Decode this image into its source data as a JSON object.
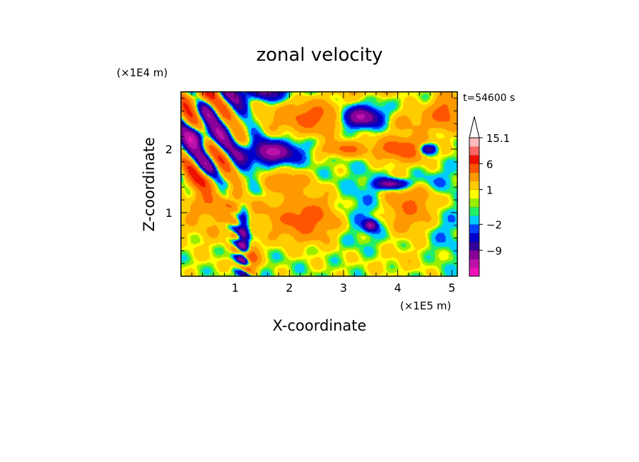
{
  "chart_data": {
    "type": "heatmap",
    "title": "zonal velocity",
    "xlabel": "X-coordinate",
    "ylabel": "Z-coordinate",
    "x_unit": "(×1E5 m)",
    "y_unit": "(×1E4 m)",
    "time_label": "t=54600 s",
    "xlim": [
      0,
      5.1
    ],
    "ylim": [
      0,
      2.9
    ],
    "x_ticks": [
      1,
      2,
      3,
      4,
      5
    ],
    "y_ticks": [
      1,
      2
    ],
    "colorbar": {
      "levels": [
        -15,
        -12,
        -9,
        -6,
        -4,
        -2,
        -1,
        0,
        0.5,
        1,
        1.5,
        3,
        6,
        9,
        12,
        15.1
      ],
      "colors": [
        "#ee11bb",
        "#bb11aa",
        "#880099",
        "#330099",
        "#0000cc",
        "#0044ff",
        "#00ccff",
        "#22ee66",
        "#99ee00",
        "#ffff00",
        "#ffcc00",
        "#ff9900",
        "#ff5500",
        "#ee1100",
        "#ff6666",
        "#ffbbbb"
      ],
      "tick_labels": [
        {
          "value": 15.1,
          "text": "15.1"
        },
        {
          "value": 6,
          "text": "6"
        },
        {
          "value": 1,
          "text": "1"
        },
        {
          "value": -2,
          "text": "−2"
        },
        {
          "value": -9,
          "text": "−9"
        }
      ],
      "extend": "max"
    },
    "features": [
      {
        "x": 2.5,
        "z": 2.5,
        "sx": 0.55,
        "sz": 0.18,
        "v": 7
      },
      {
        "x": 1.65,
        "z": 1.95,
        "sx": 0.35,
        "sz": 0.12,
        "v": -10
      },
      {
        "x": 3.3,
        "z": 2.5,
        "sx": 0.3,
        "sz": 0.12,
        "v": -12
      },
      {
        "x": 1.45,
        "z": 2.9,
        "sx": 0.35,
        "sz": 0.1,
        "v": -7
      },
      {
        "x": 3.5,
        "z": 2.95,
        "sx": 0.45,
        "sz": 0.08,
        "v": 3
      },
      {
        "x": 4.1,
        "z": 2.0,
        "sx": 0.35,
        "sz": 0.13,
        "v": 8
      },
      {
        "x": 3.0,
        "z": 2.0,
        "sx": 0.3,
        "sz": 0.08,
        "v": 6
      },
      {
        "x": 4.3,
        "z": 2.45,
        "sx": 0.45,
        "sz": 0.15,
        "v": 3
      },
      {
        "x": 4.9,
        "z": 2.6,
        "sx": 0.2,
        "sz": 0.2,
        "v": 6
      },
      {
        "x": 4.55,
        "z": 2.0,
        "sx": 0.12,
        "sz": 0.06,
        "v": -9
      },
      {
        "x": 3.9,
        "z": 1.45,
        "sx": 0.22,
        "sz": 0.06,
        "v": -9
      },
      {
        "x": 4.6,
        "z": 1.5,
        "sx": 0.35,
        "sz": 0.12,
        "v": -2
      },
      {
        "x": 3.4,
        "z": 1.0,
        "sx": 0.45,
        "sz": 0.35,
        "v": -2
      },
      {
        "x": 3.5,
        "z": 0.8,
        "sx": 0.08,
        "sz": 0.06,
        "v": -9
      },
      {
        "x": 4.2,
        "z": 1.1,
        "sx": 0.35,
        "sz": 0.3,
        "v": 6
      },
      {
        "x": 4.85,
        "z": 0.7,
        "sx": 0.3,
        "sz": 0.35,
        "v": -1.5
      },
      {
        "x": 4.2,
        "z": 0.25,
        "sx": 0.5,
        "sz": 0.18,
        "v": 1.2
      },
      {
        "x": 3.1,
        "z": 0.2,
        "sx": 0.6,
        "sz": 0.2,
        "v": 0.4
      },
      {
        "x": 2.3,
        "z": 0.9,
        "sx": 0.45,
        "sz": 0.25,
        "v": 7
      },
      {
        "x": 0.7,
        "z": 1.15,
        "sx": 0.5,
        "sz": 0.15,
        "v": 4
      },
      {
        "x": 0.6,
        "z": 0.8,
        "sx": 0.55,
        "sz": 0.25,
        "v": 2
      },
      {
        "x": 0.5,
        "z": 0.2,
        "sx": 0.45,
        "sz": 0.15,
        "v": 0.5
      },
      {
        "x": 1.15,
        "z": 0.6,
        "sx": 0.08,
        "sz": 0.3,
        "v": -9
      },
      {
        "x": 1.3,
        "z": 0.3,
        "sx": 0.1,
        "sz": 0.15,
        "v": 7
      },
      {
        "x": 0.35,
        "z": 1.5,
        "sx": 0.3,
        "sz": 0.12,
        "v": 5
      },
      {
        "x": 0.35,
        "z": 2.2,
        "sx": 0.25,
        "sz": 0.12,
        "v": -9
      },
      {
        "x": 0.25,
        "z": 2.8,
        "sx": 0.2,
        "sz": 0.12,
        "v": 8
      },
      {
        "x": 0.75,
        "z": 2.75,
        "sx": 0.2,
        "sz": 0.1,
        "v": -1.5
      },
      {
        "x": 1.3,
        "z": 1.3,
        "sx": 0.25,
        "sz": 0.12,
        "v": -1
      },
      {
        "x": 1.9,
        "z": 1.5,
        "sx": 0.3,
        "sz": 0.12,
        "v": 4
      },
      {
        "x": 2.6,
        "z": 1.25,
        "sx": 0.35,
        "sz": 0.18,
        "v": 0.6
      }
    ]
  }
}
